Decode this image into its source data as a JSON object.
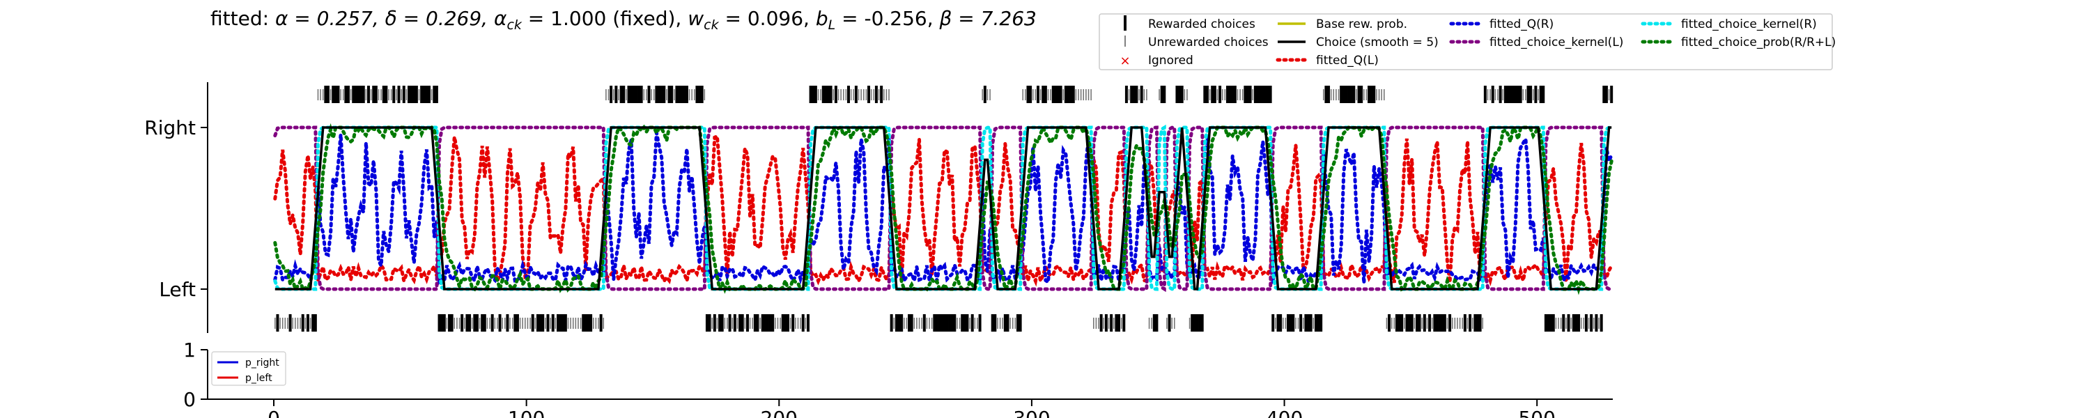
{
  "chart_data": [
    {
      "type": "line",
      "title": "fitted: α = 0.257, δ = 0.269, α_ck = 1.000 (fixed), w_ck = 0.096, b_L = -0.256, β = 7.263",
      "title_parts": {
        "prefix": "fitted: ",
        "alpha": "α = 0.257, ",
        "delta": "δ = 0.269, ",
        "alpha_ck_sym": "α",
        "alpha_ck_sub": "ck",
        "alpha_ck_val": " = 1.000 (fixed), ",
        "w_ck_sym": "w",
        "w_ck_sub": "ck",
        "w_ck_val": " = 0.096, ",
        "b_L_sym": "b",
        "b_L_sub": "L",
        "b_L_val": " = -0.256, ",
        "beta": "β = 7.263"
      },
      "xlim": [
        0,
        530
      ],
      "ylim": [
        -0.15,
        1.15
      ],
      "yticks": [
        {
          "v": 0,
          "label": "Left"
        },
        {
          "v": 1,
          "label": "Right"
        }
      ],
      "legend_placement": "top-right, outside, 4 columns",
      "legend": [
        {
          "label": "Rewarded choices",
          "marker": "thick-tick",
          "color": "#000000"
        },
        {
          "label": "Unrewarded choices",
          "marker": "thin-tick",
          "color": "#555555"
        },
        {
          "label": "Ignored",
          "marker": "x",
          "color": "#e60000"
        },
        {
          "label": "Base rew. prob.",
          "marker": "line",
          "color": "#bfbf00"
        },
        {
          "label": "Choice (smooth = 5)",
          "marker": "line",
          "color": "#000000"
        },
        {
          "label": "fitted_Q(L)",
          "marker": "dotted",
          "color": "#e60000"
        },
        {
          "label": "fitted_Q(R)",
          "marker": "dotted",
          "color": "#0000dd"
        },
        {
          "label": "fitted_choice_kernel(L)",
          "marker": "dotted",
          "color": "#800080"
        },
        {
          "label": "fitted_choice_prob(R/R+L)",
          "marker": "dotted",
          "color": "#007a00"
        },
        {
          "label": "fitted_choice_kernel(R)",
          "marker": "dotted",
          "color": "#00e5ee"
        }
      ],
      "choice_blocks": [
        {
          "start": 0,
          "end": 17,
          "side": "L"
        },
        {
          "start": 17,
          "end": 65,
          "side": "R"
        },
        {
          "start": 65,
          "end": 131,
          "side": "L"
        },
        {
          "start": 131,
          "end": 171,
          "side": "R"
        },
        {
          "start": 171,
          "end": 212,
          "side": "L"
        },
        {
          "start": 212,
          "end": 244,
          "side": "R"
        },
        {
          "start": 244,
          "end": 280,
          "side": "L"
        },
        {
          "start": 280,
          "end": 284,
          "side": "R"
        },
        {
          "start": 284,
          "end": 296,
          "side": "L"
        },
        {
          "start": 296,
          "end": 324,
          "side": "R"
        },
        {
          "start": 324,
          "end": 337,
          "side": "L"
        },
        {
          "start": 337,
          "end": 346,
          "side": "R"
        },
        {
          "start": 346,
          "end": 350,
          "side": "L"
        },
        {
          "start": 350,
          "end": 353,
          "side": "R"
        },
        {
          "start": 353,
          "end": 357,
          "side": "L"
        },
        {
          "start": 357,
          "end": 362,
          "side": "R"
        },
        {
          "start": 362,
          "end": 368,
          "side": "L"
        },
        {
          "start": 368,
          "end": 395,
          "side": "R"
        },
        {
          "start": 395,
          "end": 415,
          "side": "L"
        },
        {
          "start": 415,
          "end": 440,
          "side": "R"
        },
        {
          "start": 440,
          "end": 479,
          "side": "L"
        },
        {
          "start": 479,
          "end": 503,
          "side": "R"
        },
        {
          "start": 503,
          "end": 526,
          "side": "L"
        },
        {
          "start": 526,
          "end": 530,
          "side": "R"
        }
      ]
    },
    {
      "type": "line",
      "xlim": [
        0,
        530
      ],
      "ylim": [
        0,
        1
      ],
      "yticks": [
        0,
        1
      ],
      "xticks": [
        0,
        100,
        200,
        300,
        400,
        500
      ],
      "legend_placement": "upper-left",
      "series": [
        {
          "name": "p_right",
          "color": "#0000dd"
        },
        {
          "name": "p_left",
          "color": "#e60000"
        }
      ]
    }
  ]
}
